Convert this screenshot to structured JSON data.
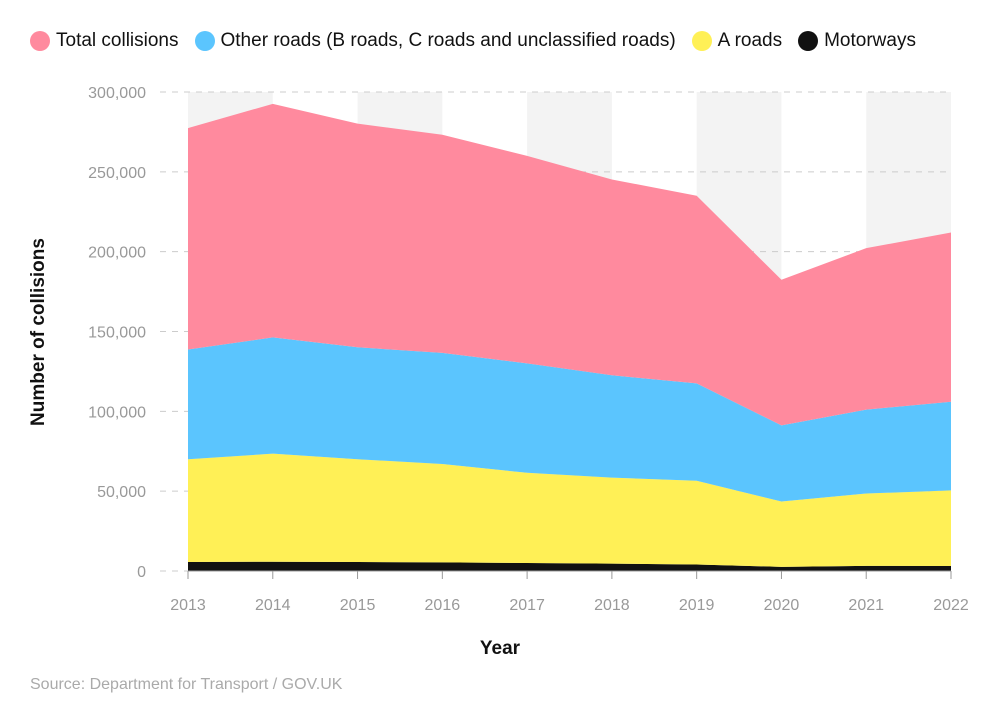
{
  "chart_data": {
    "type": "area",
    "stacked": true,
    "title": "",
    "xlabel": "Year",
    "ylabel": "Number of collisions",
    "ylim": [
      0,
      300000
    ],
    "yticks": [
      0,
      50000,
      100000,
      150000,
      200000,
      250000,
      300000
    ],
    "ytick_labels": [
      "0",
      "50,000",
      "100,000",
      "150,000",
      "200,000",
      "250,000",
      "300,000"
    ],
    "categories": [
      "2013",
      "2014",
      "2015",
      "2016",
      "2017",
      "2018",
      "2019",
      "2020",
      "2021",
      "2022"
    ],
    "legend_position": "top",
    "grid": true,
    "series": [
      {
        "name": "Motorways",
        "color": "#111111",
        "values": [
          5600,
          5800,
          5600,
          5400,
          5000,
          4600,
          4100,
          2600,
          3200,
          3100
        ]
      },
      {
        "name": "A roads",
        "color": "#fff056",
        "values": [
          64400,
          67700,
          64400,
          61600,
          56500,
          53900,
          52400,
          40900,
          45300,
          47400
        ]
      },
      {
        "name": "Other roads (B roads, C roads and unclassified roads)",
        "color": "#5bc5fe",
        "values": [
          68700,
          72800,
          70100,
          69600,
          68500,
          64100,
          61000,
          47700,
          52600,
          55500
        ]
      },
      {
        "name": "Total collisions",
        "color": "#ff8a9e",
        "values": [
          138700,
          146300,
          140100,
          136600,
          130000,
          122600,
          117500,
          91200,
          101100,
          106000
        ]
      }
    ],
    "legend_order": [
      3,
      2,
      1,
      0
    ]
  },
  "source": "Source: Department for Transport / GOV.UK"
}
